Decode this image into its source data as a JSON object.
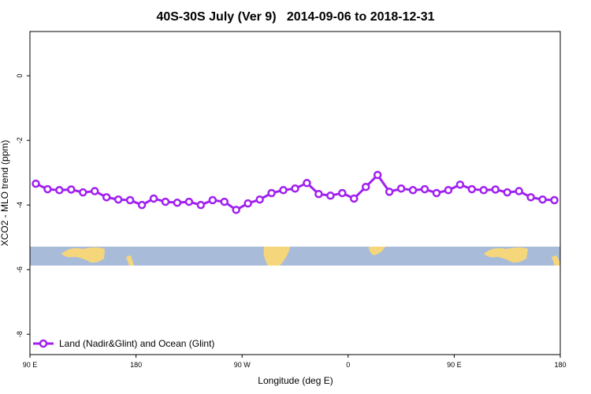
{
  "chart_data": {
    "type": "line",
    "title": "40S-30S July (Ver 9)   2014-09-06 to 2018-12-31",
    "x_label": "Longitude (deg E)",
    "y_label": "XCO2 - MLO trend (ppm)",
    "x": [
      95,
      105,
      115,
      125,
      135,
      145,
      155,
      165,
      175,
      185,
      195,
      205,
      215,
      225,
      235,
      245,
      255,
      265,
      275,
      285,
      295,
      305,
      315,
      325,
      335,
      345,
      355,
      365,
      375,
      385,
      395,
      405,
      415,
      425,
      435,
      445,
      455,
      465,
      475,
      485,
      495,
      505,
      515,
      525,
      535
    ],
    "series": [
      {
        "name": "Land (Nadir&Glint) and Ocean (Glint)",
        "color": "#a020f0",
        "values": [
          -3.34,
          -3.51,
          -3.54,
          -3.52,
          -3.61,
          -3.57,
          -3.76,
          -3.83,
          -3.85,
          -4.0,
          -3.8,
          -3.9,
          -3.93,
          -3.9,
          -4.0,
          -3.85,
          -3.9,
          -4.15,
          -3.95,
          -3.83,
          -3.63,
          -3.54,
          -3.49,
          -3.32,
          -3.66,
          -3.71,
          -3.63,
          -3.8,
          -3.44,
          -3.07,
          -3.59,
          -3.49,
          -3.54,
          -3.51,
          -3.63,
          -3.54,
          -3.37,
          -3.51,
          -3.54,
          -3.52,
          -3.61,
          -3.57,
          -3.76,
          -3.83,
          -3.85
        ]
      }
    ],
    "xlim": [
      90,
      540
    ],
    "xticks": [
      {
        "value": 90,
        "label": "90 E"
      },
      180,
      {
        "value": 270,
        "label": "90 W"
      },
      {
        "value": 360,
        "label": "0"
      },
      {
        "value": 450,
        "label": "90 E"
      },
      {
        "value": 540,
        "label": "180"
      }
    ],
    "ylim": [
      -8.63,
      1.37
    ],
    "yticks": [
      0,
      -2,
      -4,
      -6,
      -8
    ],
    "legend": "bottom-left"
  }
}
